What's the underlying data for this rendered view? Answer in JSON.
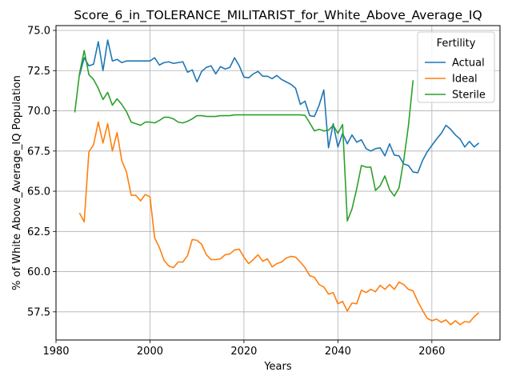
{
  "chart_data": {
    "type": "line",
    "title": "Score_6_in_TOLERANCE_MILITARIST_for_White_Above_Average_IQ",
    "xlabel": "Years",
    "ylabel": "% of White Above_Average_IQ Population",
    "xlim": [
      1980,
      2074.5
    ],
    "ylim": [
      55.75,
      75.3
    ],
    "xticks": [
      1980,
      2000,
      2020,
      2040,
      2060
    ],
    "yticks": [
      57.5,
      60.0,
      62.5,
      65.0,
      67.5,
      70.0,
      72.5,
      75.0
    ],
    "ytick_labels": [
      "57.5",
      "60.0",
      "62.5",
      "65.0",
      "67.5",
      "70.0",
      "72.5",
      "75.0"
    ],
    "grid": true,
    "legend": {
      "title": "Fertility",
      "position": "top-right"
    },
    "series": [
      {
        "name": "Actual",
        "color": "#1f77b4",
        "x": [
          1985,
          1986,
          1987,
          1988,
          1989,
          1990,
          1991,
          1992,
          1993,
          1994,
          1995,
          1996,
          1997,
          1998,
          1999,
          2000,
          2001,
          2002,
          2003,
          2004,
          2005,
          2006,
          2007,
          2008,
          2009,
          2010,
          2011,
          2012,
          2013,
          2014,
          2015,
          2016,
          2017,
          2018,
          2019,
          2020,
          2021,
          2022,
          2023,
          2024,
          2025,
          2026,
          2027,
          2028,
          2029,
          2030,
          2031,
          2032,
          2033,
          2034,
          2035,
          2036,
          2037,
          2038,
          2039,
          2040,
          2041,
          2042,
          2043,
          2044,
          2045,
          2046,
          2047,
          2048,
          2049,
          2050,
          2051,
          2052,
          2053,
          2054,
          2055,
          2056,
          2057,
          2058,
          2059,
          2060,
          2061,
          2062,
          2063,
          2064,
          2065,
          2066,
          2067,
          2068,
          2069,
          2070
        ],
        "values": [
          72.2,
          73.3,
          72.8,
          72.9,
          74.3,
          72.5,
          74.4,
          73.1,
          73.2,
          73.0,
          73.1,
          73.1,
          73.1,
          73.1,
          73.1,
          73.1,
          73.3,
          72.85,
          73.0,
          73.05,
          72.95,
          73.0,
          73.05,
          72.4,
          72.55,
          71.8,
          72.45,
          72.7,
          72.8,
          72.3,
          72.75,
          72.6,
          72.7,
          73.3,
          72.8,
          72.1,
          72.05,
          72.3,
          72.45,
          72.15,
          72.15,
          72.0,
          72.2,
          71.95,
          71.8,
          71.65,
          71.4,
          70.4,
          70.6,
          69.7,
          69.65,
          70.35,
          71.3,
          67.7,
          69.2,
          67.75,
          68.6,
          67.95,
          68.5,
          68.05,
          68.2,
          67.65,
          67.5,
          67.65,
          67.7,
          67.2,
          67.95,
          67.25,
          67.2,
          66.7,
          66.6,
          66.2,
          66.15,
          66.9,
          67.45,
          67.85,
          68.25,
          68.6,
          69.1,
          68.85,
          68.5,
          68.25,
          67.75,
          68.1,
          67.75,
          68.0
        ]
      },
      {
        "name": "Ideal",
        "color": "#ff7f0e",
        "x": [
          1985,
          1986,
          1987,
          1988,
          1989,
          1990,
          1991,
          1992,
          1993,
          1994,
          1995,
          1996,
          1997,
          1998,
          1999,
          2000,
          2001,
          2002,
          2003,
          2004,
          2005,
          2006,
          2007,
          2008,
          2009,
          2010,
          2011,
          2012,
          2013,
          2014,
          2015,
          2016,
          2017,
          2018,
          2019,
          2020,
          2021,
          2022,
          2023,
          2024,
          2025,
          2026,
          2027,
          2028,
          2029,
          2030,
          2031,
          2032,
          2033,
          2034,
          2035,
          2036,
          2037,
          2038,
          2039,
          2040,
          2041,
          2042,
          2043,
          2044,
          2045,
          2046,
          2047,
          2048,
          2049,
          2050,
          2051,
          2052,
          2053,
          2054,
          2055,
          2056,
          2057,
          2058,
          2059,
          2060,
          2061,
          2062,
          2063,
          2064,
          2065,
          2066,
          2067,
          2068,
          2069,
          2070
        ],
        "values": [
          63.65,
          63.1,
          67.45,
          67.9,
          69.3,
          68.0,
          69.2,
          67.5,
          68.65,
          66.9,
          66.2,
          64.75,
          64.75,
          64.4,
          64.8,
          64.65,
          62.1,
          61.5,
          60.7,
          60.35,
          60.25,
          60.6,
          60.6,
          61.0,
          62.0,
          61.95,
          61.7,
          61.05,
          60.75,
          60.75,
          60.8,
          61.05,
          61.1,
          61.35,
          61.4,
          60.9,
          60.5,
          60.75,
          61.05,
          60.65,
          60.8,
          60.3,
          60.5,
          60.6,
          60.85,
          60.95,
          60.9,
          60.6,
          60.25,
          59.75,
          59.65,
          59.2,
          59.05,
          58.6,
          58.7,
          58.0,
          58.15,
          57.55,
          58.05,
          58.0,
          58.85,
          58.7,
          58.9,
          58.75,
          59.15,
          58.9,
          59.2,
          58.9,
          59.35,
          59.2,
          58.9,
          58.8,
          58.15,
          57.6,
          57.1,
          56.95,
          57.05,
          56.85,
          57.0,
          56.7,
          56.95,
          56.7,
          56.9,
          56.85,
          57.2,
          57.45
        ]
      },
      {
        "name": "Sterile",
        "color": "#2ca02c",
        "x": [
          1984,
          1985,
          1986,
          1987,
          1988,
          1989,
          1990,
          1991,
          1992,
          1993,
          1994,
          1995,
          1996,
          1997,
          1998,
          1999,
          2000,
          2001,
          2002,
          2003,
          2004,
          2005,
          2006,
          2007,
          2008,
          2009,
          2010,
          2011,
          2012,
          2013,
          2014,
          2015,
          2016,
          2017,
          2018,
          2019,
          2020,
          2021,
          2022,
          2023,
          2024,
          2025,
          2026,
          2027,
          2028,
          2029,
          2030,
          2031,
          2032,
          2033,
          2034,
          2035,
          2036,
          2037,
          2038,
          2039,
          2040,
          2041,
          2042,
          2043,
          2044,
          2045,
          2046,
          2047,
          2048,
          2049,
          2050,
          2051,
          2052,
          2053,
          2054,
          2055,
          2056
        ],
        "values": [
          69.9,
          72.3,
          73.75,
          72.25,
          71.95,
          71.4,
          70.7,
          71.15,
          70.35,
          70.75,
          70.4,
          69.95,
          69.3,
          69.2,
          69.1,
          69.3,
          69.3,
          69.25,
          69.4,
          69.6,
          69.6,
          69.5,
          69.3,
          69.25,
          69.35,
          69.5,
          69.7,
          69.7,
          69.65,
          69.65,
          69.65,
          69.7,
          69.7,
          69.7,
          69.75,
          69.75,
          69.75,
          69.75,
          69.75,
          69.75,
          69.75,
          69.75,
          69.75,
          69.75,
          69.75,
          69.75,
          69.75,
          69.75,
          69.75,
          69.72,
          69.25,
          68.75,
          68.85,
          68.75,
          68.8,
          69.1,
          68.6,
          69.15,
          63.15,
          63.9,
          65.15,
          66.6,
          66.5,
          66.5,
          65.05,
          65.35,
          65.95,
          65.1,
          64.7,
          65.2,
          66.9,
          69.05,
          71.9
        ]
      }
    ]
  }
}
